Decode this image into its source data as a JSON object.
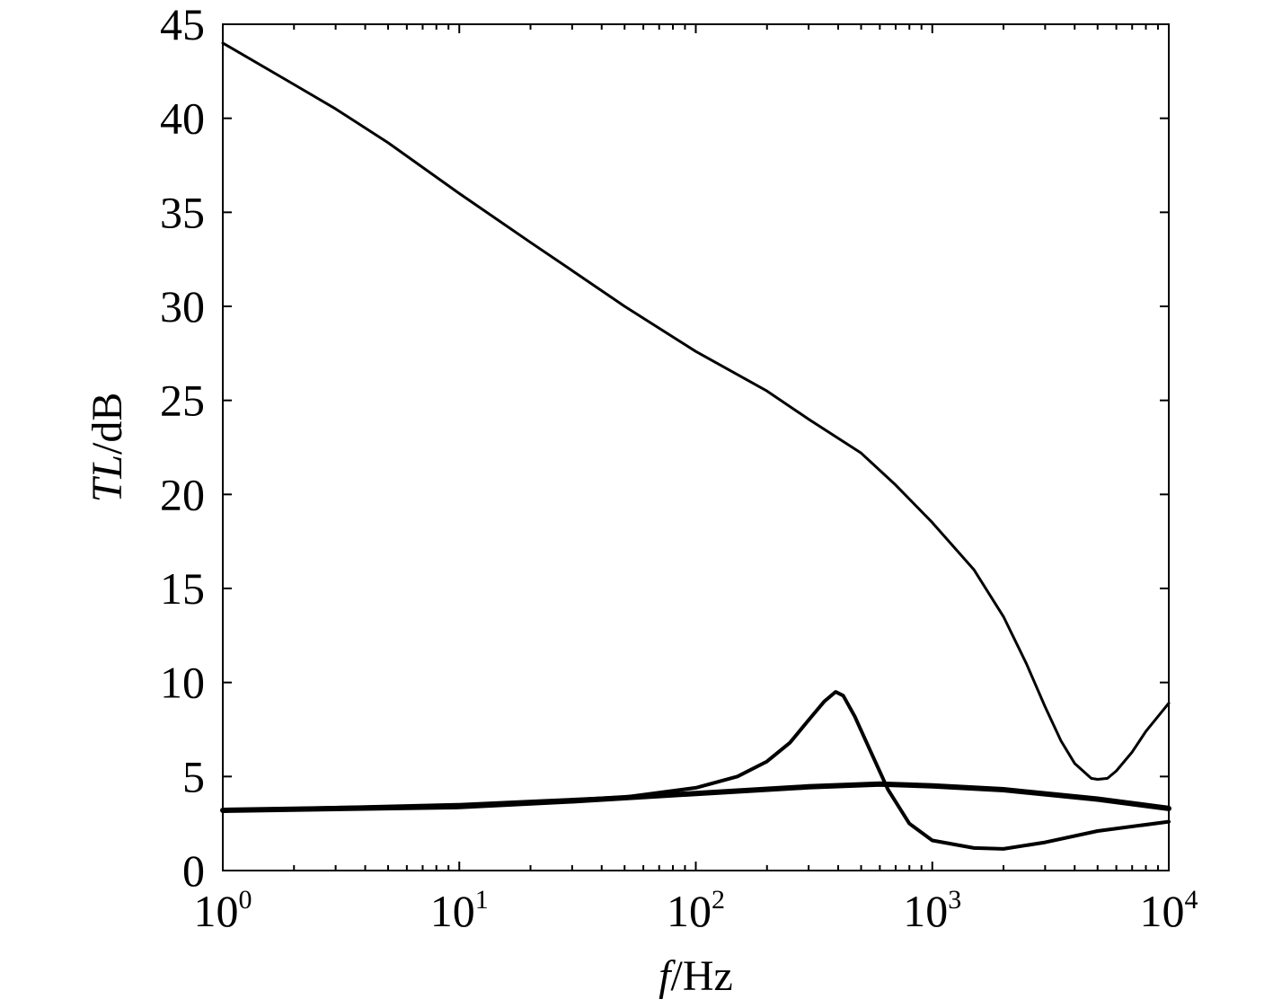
{
  "chart_data": {
    "type": "line",
    "x_scale": "log",
    "xlim": [
      1,
      10000
    ],
    "ylim": [
      0,
      45
    ],
    "grid": false,
    "legend": "none",
    "xlabel": {
      "italic": "f",
      "rest": "/Hz"
    },
    "ylabel": {
      "italic": "TL",
      "rest": "/dB"
    },
    "x_ticks": [
      {
        "value": 1,
        "base": "10",
        "exp": "0"
      },
      {
        "value": 10,
        "base": "10",
        "exp": "1"
      },
      {
        "value": 100,
        "base": "10",
        "exp": "2"
      },
      {
        "value": 1000,
        "base": "10",
        "exp": "3"
      },
      {
        "value": 10000,
        "base": "10",
        "exp": "4"
      }
    ],
    "y_ticks": [
      0,
      5,
      10,
      15,
      20,
      25,
      30,
      35,
      40,
      45
    ],
    "line_color": "#000000",
    "series": [
      {
        "stroke": 3,
        "points": [
          [
            1,
            44.0
          ],
          [
            2,
            41.8
          ],
          [
            3,
            40.5
          ],
          [
            5,
            38.7
          ],
          [
            10,
            36.0
          ],
          [
            20,
            33.4
          ],
          [
            30,
            31.9
          ],
          [
            50,
            30.0
          ],
          [
            100,
            27.6
          ],
          [
            200,
            25.5
          ],
          [
            300,
            24.0
          ],
          [
            500,
            22.2
          ],
          [
            700,
            20.5
          ],
          [
            1000,
            18.5
          ],
          [
            1500,
            16.0
          ],
          [
            2000,
            13.5
          ],
          [
            2500,
            11.0
          ],
          [
            3000,
            8.7
          ],
          [
            3500,
            6.9
          ],
          [
            4000,
            5.7
          ],
          [
            4700,
            4.9
          ],
          [
            5000,
            4.85
          ],
          [
            5500,
            4.9
          ],
          [
            6000,
            5.3
          ],
          [
            7000,
            6.3
          ],
          [
            8000,
            7.4
          ],
          [
            10000,
            8.9
          ]
        ]
      },
      {
        "stroke": 4,
        "points": [
          [
            1,
            3.2
          ],
          [
            10,
            3.5
          ],
          [
            50,
            3.9
          ],
          [
            100,
            4.4
          ],
          [
            150,
            5.0
          ],
          [
            200,
            5.8
          ],
          [
            250,
            6.8
          ],
          [
            300,
            8.0
          ],
          [
            350,
            9.0
          ],
          [
            390,
            9.5
          ],
          [
            420,
            9.3
          ],
          [
            470,
            8.2
          ],
          [
            550,
            6.3
          ],
          [
            650,
            4.3
          ],
          [
            800,
            2.5
          ],
          [
            1000,
            1.6
          ],
          [
            1500,
            1.2
          ],
          [
            2000,
            1.15
          ],
          [
            3000,
            1.5
          ],
          [
            5000,
            2.1
          ],
          [
            10000,
            2.6
          ]
        ]
      },
      {
        "stroke": 6,
        "points": [
          [
            1,
            3.2
          ],
          [
            10,
            3.4
          ],
          [
            30,
            3.7
          ],
          [
            100,
            4.1
          ],
          [
            300,
            4.45
          ],
          [
            600,
            4.6
          ],
          [
            1000,
            4.5
          ],
          [
            2000,
            4.3
          ],
          [
            5000,
            3.8
          ],
          [
            10000,
            3.3
          ]
        ]
      }
    ]
  }
}
